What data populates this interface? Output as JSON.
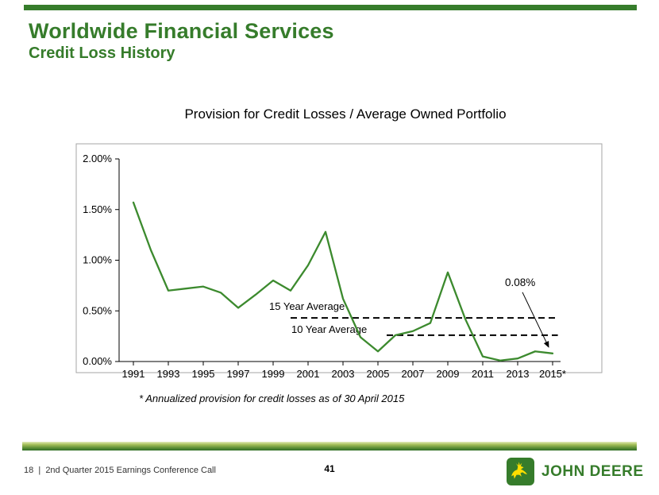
{
  "slide": {
    "title": "Worldwide Financial Services",
    "subtitle": "Credit Loss History"
  },
  "chart_data": {
    "type": "line",
    "title": "Provision for Credit Losses / Average Owned Portfolio",
    "x": [
      1991,
      1992,
      1993,
      1994,
      1995,
      1996,
      1997,
      1998,
      1999,
      2000,
      2001,
      2002,
      2003,
      2004,
      2005,
      2006,
      2007,
      2008,
      2009,
      2010,
      2011,
      2012,
      2013,
      2014,
      2015
    ],
    "values": [
      1.57,
      1.1,
      0.7,
      0.72,
      0.74,
      0.68,
      0.53,
      0.66,
      0.8,
      0.7,
      0.95,
      1.28,
      0.62,
      0.24,
      0.1,
      0.26,
      0.3,
      0.38,
      0.88,
      0.42,
      0.05,
      0.01,
      0.03,
      0.1,
      0.08
    ],
    "ylim": [
      0,
      2
    ],
    "yticks": [
      {
        "value": 0.0,
        "label": "0.00%"
      },
      {
        "value": 0.5,
        "label": "0.50%"
      },
      {
        "value": 1.0,
        "label": "1.00%"
      },
      {
        "value": 1.5,
        "label": "1.50%"
      },
      {
        "value": 2.0,
        "label": "2.00%"
      }
    ],
    "xticks": [
      {
        "year": 1991,
        "label": "1991"
      },
      {
        "year": 1993,
        "label": "1993"
      },
      {
        "year": 1995,
        "label": "1995"
      },
      {
        "year": 1997,
        "label": "1997"
      },
      {
        "year": 1999,
        "label": "1999"
      },
      {
        "year": 2001,
        "label": "2001"
      },
      {
        "year": 2003,
        "label": "2003"
      },
      {
        "year": 2005,
        "label": "2005"
      },
      {
        "year": 2007,
        "label": "2007"
      },
      {
        "year": 2009,
        "label": "2009"
      },
      {
        "year": 2011,
        "label": "2011"
      },
      {
        "year": 2013,
        "label": "2013"
      },
      {
        "year": 2015,
        "label": "2015*"
      }
    ],
    "line_color": "#3c8a2e",
    "grid": false,
    "legend": "none",
    "averages": [
      {
        "label": "15 Year Average",
        "value": 0.43,
        "start_year": 2000,
        "end_year": 2015.3,
        "label_position": "above-start"
      },
      {
        "label": "10 Year Average",
        "value": 0.26,
        "start_year": 2005.5,
        "end_year": 2015.3,
        "label_position": "left-of-start"
      }
    ],
    "annotation": {
      "label": "0.08%",
      "target_year": 2015,
      "target_value": 0.08
    }
  },
  "footnote": "* Annualized provision for credit losses as of 30 April 2015",
  "footer": {
    "left": "18  |  2nd Quarter 2015 Earnings Conference Call",
    "page_number": "41",
    "brand": "JOHN DEERE"
  },
  "colors": {
    "deere_green": "#367C2B",
    "deere_yellow": "#FFDE00",
    "line_green": "#3c8a2e"
  }
}
